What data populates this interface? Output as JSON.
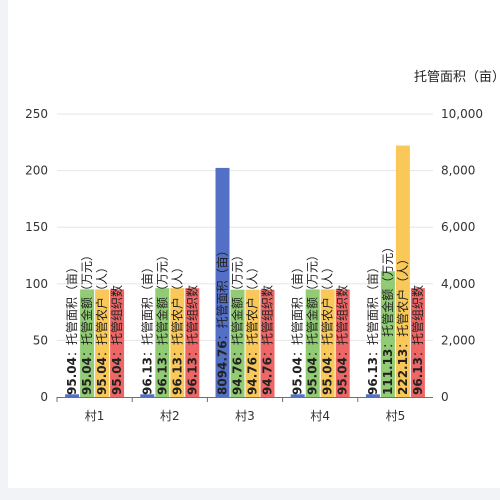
{
  "chart_data": {
    "type": "bar",
    "categories": [
      "村1",
      "村2",
      "村3",
      "村4",
      "村5"
    ],
    "series": [
      {
        "name": "托管面积（亩）",
        "axis": "right",
        "color": "#5470c6",
        "values": [
          95.04,
          96.13,
          8094.76,
          95.04,
          96.13
        ],
        "labels": [
          "95.04",
          "96.13",
          "8094.76",
          "95.04",
          "96.13"
        ]
      },
      {
        "name": "托管金额（万元）",
        "axis": "left",
        "color": "#91cc75",
        "values": [
          95.04,
          96.13,
          94.76,
          95.04,
          111.13
        ],
        "labels": [
          "95.04",
          "96.13",
          "94.76",
          "95.04",
          "111.13"
        ]
      },
      {
        "name": "托管农户（人）",
        "axis": "left",
        "color": "#fac858",
        "values": [
          95.04,
          96.13,
          94.76,
          95.04,
          222.13
        ],
        "labels": [
          "95.04",
          "96.13",
          "94.76",
          "95.04",
          "222.13"
        ]
      },
      {
        "name": "托管组织数",
        "axis": "left",
        "color": "#ee6666",
        "values": [
          95.04,
          96.13,
          94.76,
          95.04,
          96.13
        ],
        "labels": [
          "95.04",
          "96.13",
          "94.76",
          "95.04",
          "96.13"
        ]
      }
    ],
    "y_left": {
      "min": 0,
      "max": 250,
      "ticks": [
        "0",
        "50",
        "100",
        "150",
        "200",
        "250"
      ]
    },
    "y_right": {
      "min": 0,
      "max": 10000,
      "name": "托管面积（亩）",
      "ticks": [
        "0",
        "2,000",
        "4,000",
        "6,000",
        "8,000",
        "10,000"
      ]
    },
    "grid": true
  }
}
